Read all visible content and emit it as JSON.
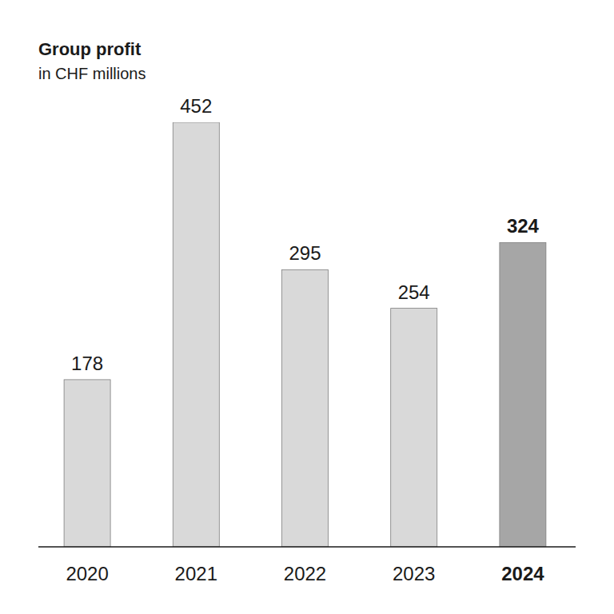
{
  "chart_data": {
    "type": "bar",
    "title": "Group profit",
    "subtitle": "in CHF millions",
    "categories": [
      "2020",
      "2021",
      "2022",
      "2023",
      "2024"
    ],
    "values": [
      178,
      452,
      295,
      254,
      324
    ],
    "colors": [
      "#d9d9d9",
      "#d9d9d9",
      "#d9d9d9",
      "#d9d9d9",
      "#a6a6a6"
    ],
    "ylim": [
      0,
      452
    ],
    "yticks": [],
    "grid": false,
    "data_labels": true,
    "tick_labels": "x"
  }
}
